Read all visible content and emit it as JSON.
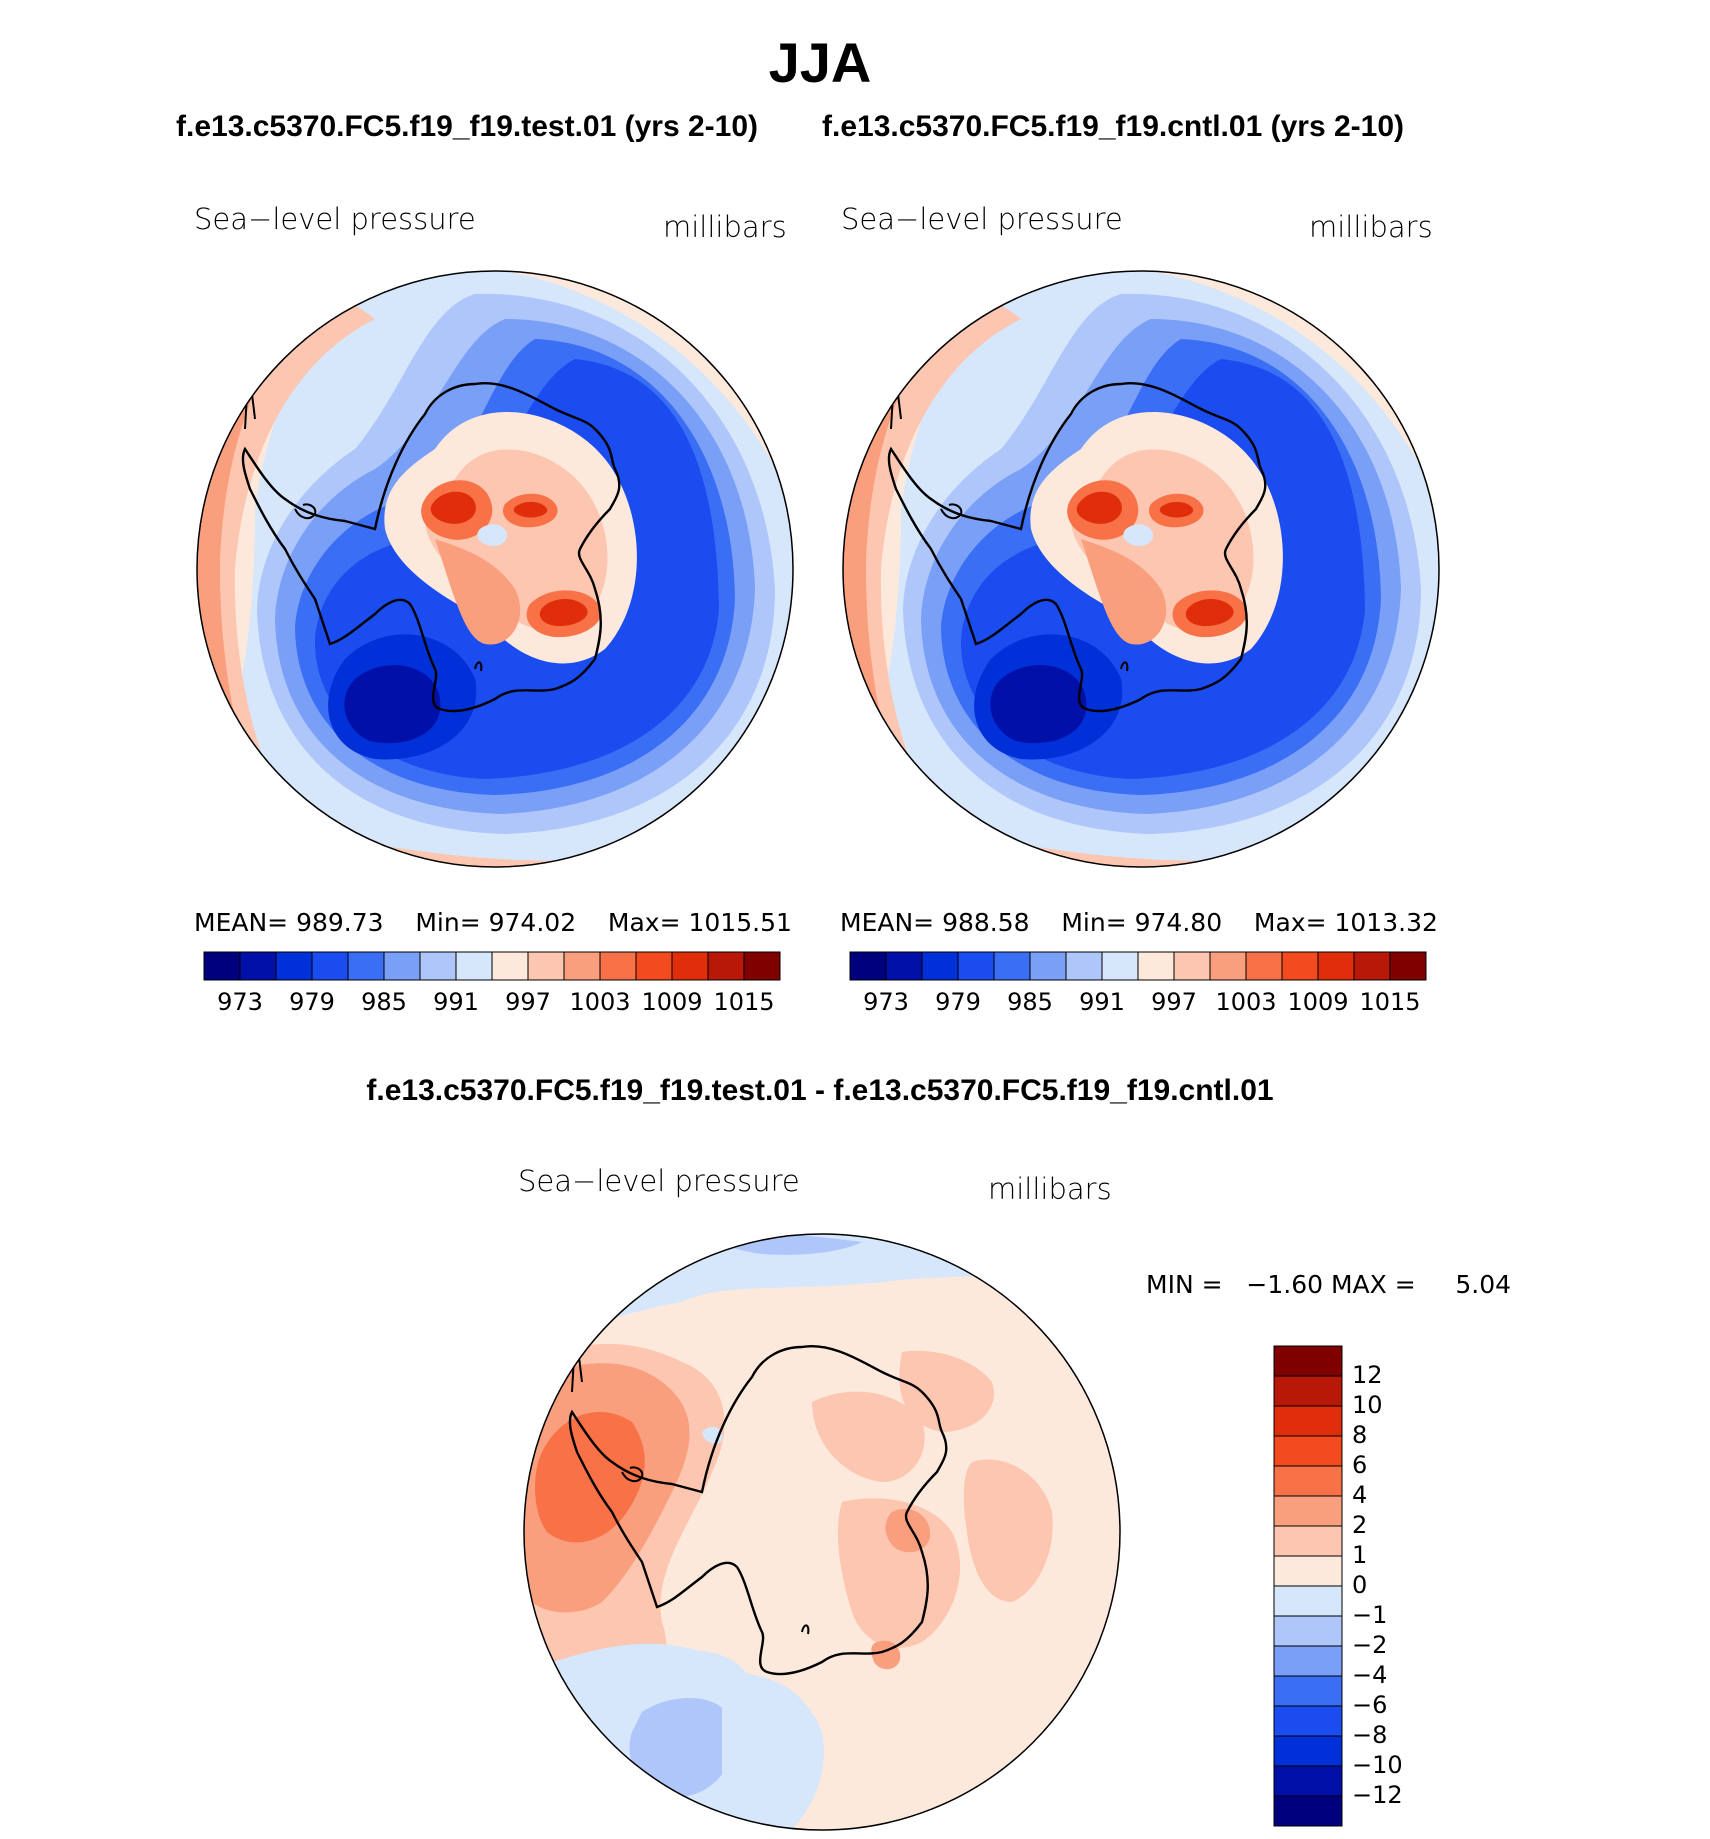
{
  "title": "JJA",
  "panels": [
    {
      "case_title": "f.e13.c5370.FC5.f19_f19.test.01 (yrs 2-10)",
      "variable": "Sea−level pressure",
      "units": "millibars",
      "stats": {
        "mean_label": "MEAN=",
        "mean": "989.73",
        "min_label": "Min=",
        "min": "974.02",
        "max_label": "Max=",
        "max": "1015.51"
      }
    },
    {
      "case_title": "f.e13.c5370.FC5.f19_f19.cntl.01 (yrs 2-10)",
      "variable": "Sea−level pressure",
      "units": "millibars",
      "stats": {
        "mean_label": "MEAN=",
        "mean": "988.58",
        "min_label": "Min=",
        "min": "974.80",
        "max_label": "Max=",
        "max": "1013.32"
      }
    }
  ],
  "abs_colorbar": {
    "colors": [
      "#00007f",
      "#0010a8",
      "#0030d8",
      "#1a4cf0",
      "#3a6ef5",
      "#7a9ff7",
      "#aec6fa",
      "#d6e6fb",
      "#fde9dc",
      "#fcc6b0",
      "#fa9f7d",
      "#f87147",
      "#f44a20",
      "#e02e0a",
      "#b81808",
      "#800000"
    ],
    "tick_labels": [
      "973",
      "979",
      "985",
      "991",
      "997",
      "1003",
      "1009",
      "1015"
    ]
  },
  "diff": {
    "title": "f.e13.c5370.FC5.f19_f19.test.01 - f.e13.c5370.FC5.f19_f19.cntl.01",
    "variable": "Sea−level pressure",
    "units": "millibars",
    "min_label": "MIN =",
    "min": "−1.60",
    "max_label": "MAX =",
    "max": "5.04",
    "colorbar": {
      "colors_top_to_bottom": [
        "#800000",
        "#b81808",
        "#e02e0a",
        "#f44a20",
        "#f87147",
        "#fa9f7d",
        "#fcc6b0",
        "#fde9dc",
        "#d6e6fb",
        "#aec6fa",
        "#7a9ff7",
        "#3a6ef5",
        "#1a4cf0",
        "#0030d8",
        "#0010a8",
        "#00007f"
      ],
      "tick_labels": [
        "12",
        "10",
        "8",
        "6",
        "4",
        "2",
        "1",
        "0",
        "−1",
        "−2",
        "−4",
        "−6",
        "−8",
        "−10",
        "−12"
      ]
    }
  }
}
